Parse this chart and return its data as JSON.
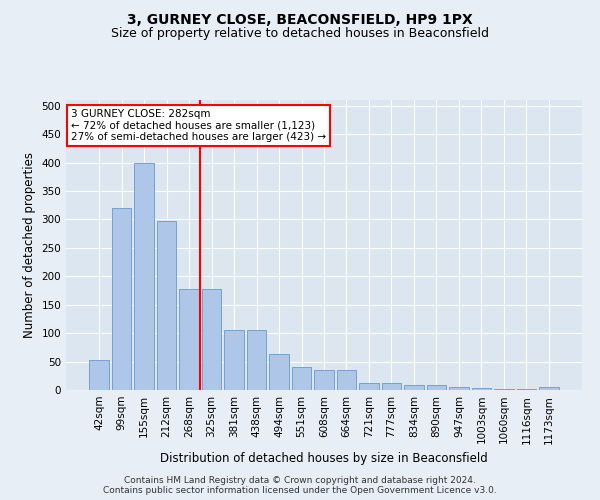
{
  "title": "3, GURNEY CLOSE, BEACONSFIELD, HP9 1PX",
  "subtitle": "Size of property relative to detached houses in Beaconsfield",
  "xlabel": "Distribution of detached houses by size in Beaconsfield",
  "ylabel": "Number of detached properties",
  "footer1": "Contains HM Land Registry data © Crown copyright and database right 2024.",
  "footer2": "Contains public sector information licensed under the Open Government Licence v3.0.",
  "categories": [
    "42sqm",
    "99sqm",
    "155sqm",
    "212sqm",
    "268sqm",
    "325sqm",
    "381sqm",
    "438sqm",
    "494sqm",
    "551sqm",
    "608sqm",
    "664sqm",
    "721sqm",
    "777sqm",
    "834sqm",
    "890sqm",
    "947sqm",
    "1003sqm",
    "1060sqm",
    "1116sqm",
    "1173sqm"
  ],
  "values": [
    53,
    320,
    400,
    298,
    178,
    178,
    106,
    106,
    63,
    41,
    36,
    36,
    13,
    12,
    8,
    8,
    5,
    3,
    1,
    1,
    5
  ],
  "bar_color": "#aec6e8",
  "bar_edge_color": "#6699cc",
  "vline_x": 4.5,
  "vline_color": "red",
  "annotation_text": "3 GURNEY CLOSE: 282sqm\n← 72% of detached houses are smaller (1,123)\n27% of semi-detached houses are larger (423) →",
  "annotation_box_color": "white",
  "annotation_box_edge": "red",
  "ylim": [
    0,
    510
  ],
  "yticks": [
    0,
    50,
    100,
    150,
    200,
    250,
    300,
    350,
    400,
    450,
    500
  ],
  "background_color": "#e8eef5",
  "plot_background": "#dce6f0",
  "grid_color": "white",
  "title_fontsize": 10,
  "subtitle_fontsize": 9,
  "axis_label_fontsize": 8.5,
  "tick_fontsize": 7.5,
  "footer_fontsize": 6.5
}
